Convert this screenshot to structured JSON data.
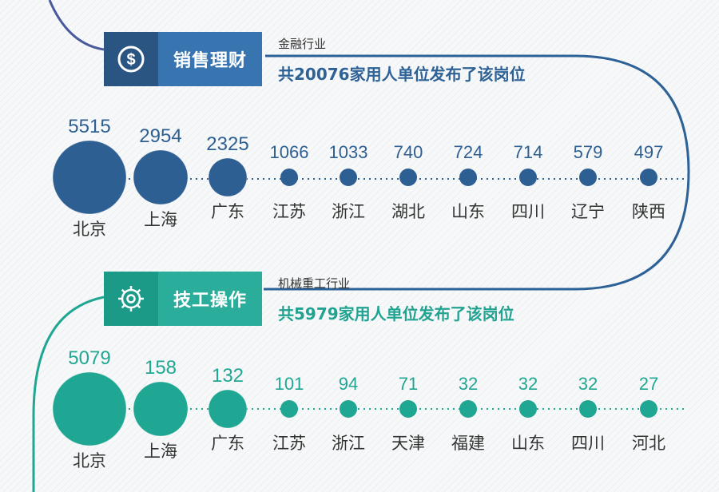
{
  "sections": [
    {
      "title": "销售理财",
      "icon": "dollar-coin-icon",
      "industry": "金融行业",
      "summary": "共20076家用人单位发布了该岗位",
      "color": "#2d5f92",
      "header_dark": "#2a5582",
      "header_light": "#3875b0",
      "chart_data": {
        "type": "bubble",
        "categories": [
          "北京",
          "上海",
          "广东",
          "江苏",
          "浙江",
          "湖北",
          "山东",
          "四川",
          "辽宁",
          "陕西"
        ],
        "values": [
          5515,
          2954,
          2325,
          1066,
          1033,
          740,
          724,
          714,
          579,
          497
        ]
      }
    },
    {
      "title": "技工操作",
      "icon": "gear-icon",
      "industry": "机械重工行业",
      "summary": "共5979家用人单位发布了该岗位",
      "color": "#20a793",
      "header_dark": "#1c9a88",
      "header_light": "#2aae9b",
      "chart_data": {
        "type": "bubble",
        "categories": [
          "北京",
          "上海",
          "广东",
          "江苏",
          "浙江",
          "天津",
          "福建",
          "山东",
          "四川",
          "河北"
        ],
        "values": [
          5079,
          158,
          132,
          101,
          94,
          71,
          32,
          32,
          32,
          27
        ]
      }
    }
  ]
}
